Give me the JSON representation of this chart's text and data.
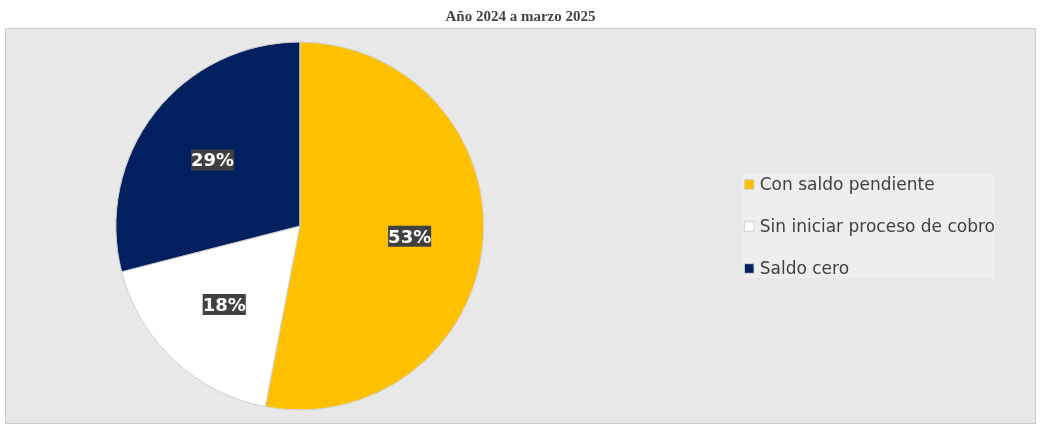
{
  "chart_data": {
    "type": "pie",
    "title": "Año 2024 a marzo 2025",
    "categories": [
      "Con saldo pendiente",
      "Sin iniciar proceso de cobro",
      "Saldo cero"
    ],
    "values": [
      53,
      18,
      29
    ],
    "colors": [
      "#ffc000",
      "#ffffff",
      "#002060"
    ],
    "value_labels": [
      "53%",
      "18%",
      "29%"
    ],
    "legend": "right"
  }
}
